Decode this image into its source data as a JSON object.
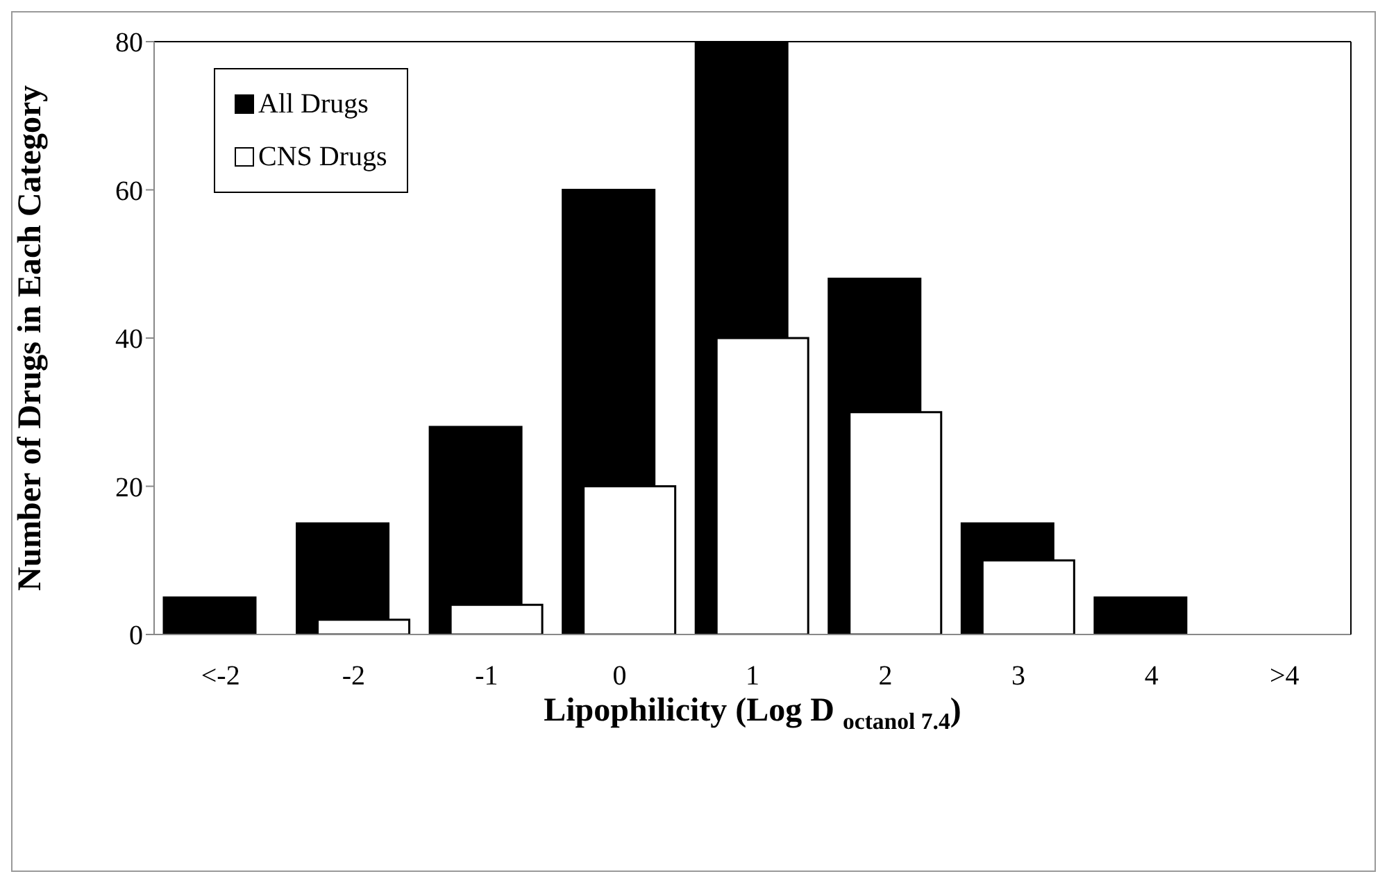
{
  "chart_data": {
    "type": "bar",
    "xlabel": "Lipophilicity (Log D $_{octanol 7.4}$)",
    "ylabel": "Number of Drugs in Each Category",
    "categories": [
      "<-2",
      "-2",
      "-1",
      "0",
      "1",
      "2",
      "3",
      "4",
      ">4"
    ],
    "series": [
      {
        "name": "All Drugs",
        "color": "#000000",
        "values": [
          5,
          15,
          28,
          60,
          80,
          48,
          15,
          5,
          0
        ]
      },
      {
        "name": "CNS Drugs",
        "color": "#ffffff",
        "values": [
          0,
          2,
          4,
          20,
          40,
          30,
          10,
          0,
          0
        ]
      }
    ],
    "ylim": [
      0,
      80
    ],
    "yticks": [
      0,
      20,
      40,
      60,
      80
    ],
    "grid": false,
    "legend": "top left"
  }
}
